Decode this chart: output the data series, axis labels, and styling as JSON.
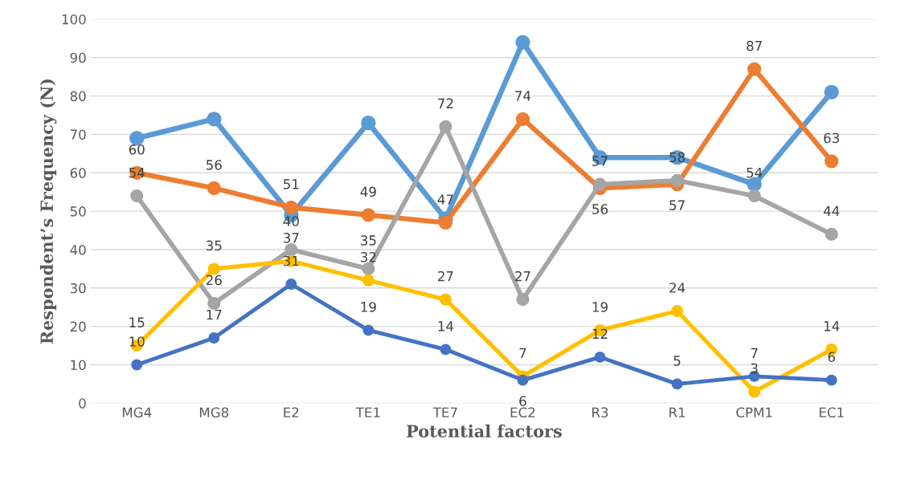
{
  "chart_data": {
    "type": "line",
    "xlabel": "Potential factors",
    "ylabel": "Respondent’s Frequency (N)",
    "categories": [
      "MG4",
      "MG8",
      "E2",
      "TE1",
      "TE7",
      "EC2",
      "R3",
      "R1",
      "CPM1",
      "EC1"
    ],
    "ylim": [
      0,
      100
    ],
    "yticks": [
      0,
      10,
      20,
      30,
      40,
      50,
      60,
      70,
      80,
      90,
      100
    ],
    "grid": "y",
    "marker": "circle",
    "line_style": "solid",
    "series": [
      {
        "color": "#5b9bd5",
        "values": [
          69,
          74,
          49,
          73,
          48,
          94,
          64,
          64,
          57,
          81
        ]
      },
      {
        "color": "#ed7d31",
        "values": [
          60,
          56,
          51,
          49,
          47,
          74,
          56,
          57,
          87,
          63
        ],
        "value_labels": [
          "60",
          "56",
          "51",
          "49",
          "47",
          "74",
          "56",
          "57",
          "87",
          "63"
        ]
      },
      {
        "color": "#a5a5a5",
        "values": [
          54,
          26,
          40,
          35,
          72,
          27,
          57,
          58,
          54,
          44
        ],
        "value_labels": [
          "54",
          "26",
          "40",
          "35",
          "72",
          "27",
          "57",
          "58",
          "54",
          "44"
        ]
      },
      {
        "color": "#ffc000",
        "values": [
          15,
          35,
          37,
          32,
          27,
          7,
          19,
          24,
          3,
          14
        ],
        "value_labels": [
          "15",
          "35",
          "37",
          "32",
          "27",
          "7",
          "19",
          "24",
          "3",
          "14"
        ]
      },
      {
        "color": "#4472c4",
        "values": [
          10,
          17,
          31,
          19,
          14,
          6,
          12,
          5,
          7,
          6
        ],
        "value_labels": [
          "10",
          "17",
          "31",
          "19",
          "14",
          "6",
          "12",
          "5",
          "7",
          "6"
        ]
      }
    ]
  }
}
